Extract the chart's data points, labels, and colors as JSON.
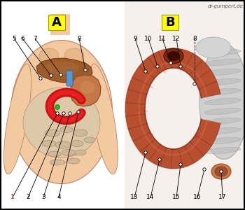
{
  "watermark": "dr-gumpert.de",
  "bg": "#ffffff",
  "border": "#000000",
  "skin": "#f2c9a0",
  "skin_dark": "#d4956a",
  "skin_edge": "#c08060",
  "liver_color": "#9b5c2a",
  "liver_edge": "#7a3d10",
  "stomach_color": "#c47848",
  "stomach_edge": "#8a4820",
  "intestine_color": "#dcc0a0",
  "intestine_edge": "#b09070",
  "duo_red": "#cc1010",
  "duo_red_light": "#ff5050",
  "duo_B_outer": "#b05535",
  "duo_B_inner": "#7a2810",
  "duo_B_mid": "#904030",
  "bile_blue": "#5599cc",
  "bile_green": "#44aa44",
  "gray_tissue": "#c8c8c8",
  "gray_tissue_edge": "#a0a0a0",
  "label_bg": "#ffff00",
  "label_edge": "#999900",
  "ann_dot_fill": "#ffffff",
  "ann_dot_edge": "#000000",
  "ann_line": "#111111",
  "label_1_color": "#cc0000",
  "label_color": "#000000"
}
